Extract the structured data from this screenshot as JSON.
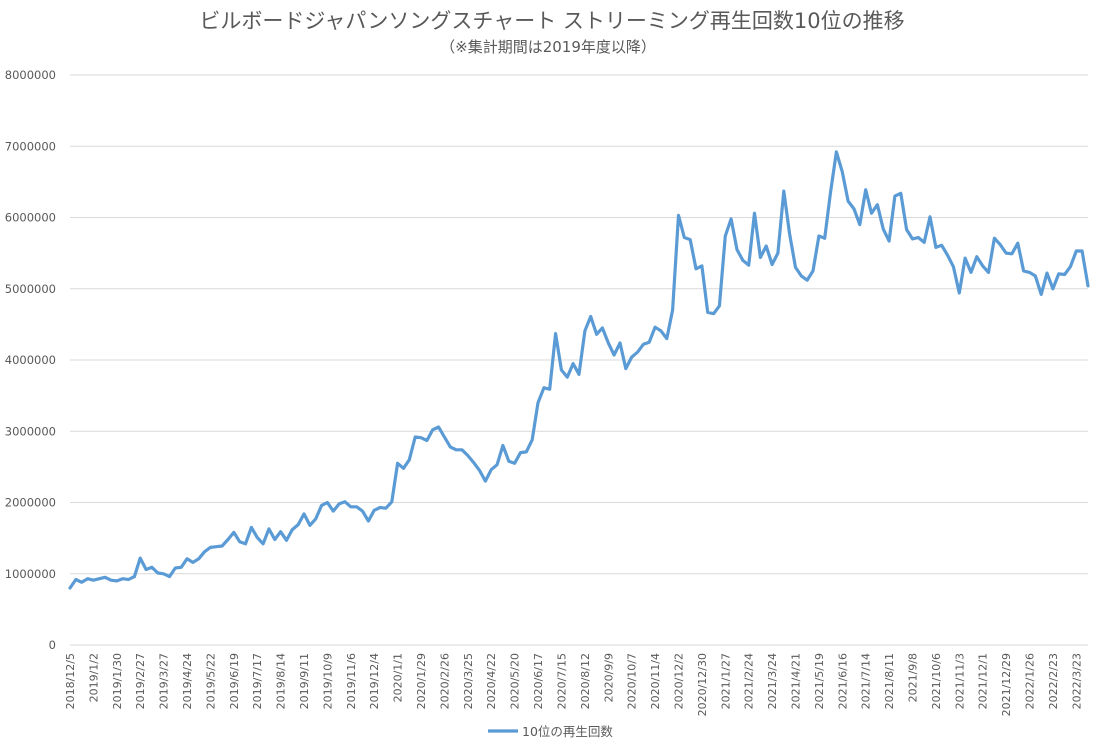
{
  "chart_data": {
    "type": "line",
    "title": "ビルボードジャパンソングスチャート ストリーミング再生回数10位の推移",
    "subtitle": "（※集計期間は2019年度以降）",
    "xlabel": "",
    "ylabel": "",
    "ylim": [
      0,
      8000000
    ],
    "y_ticks": [
      "8000000",
      "7000000",
      "6000000",
      "5000000",
      "4000000",
      "3000000",
      "2000000",
      "1000000",
      "0"
    ],
    "y_tick_values": [
      8000000,
      7000000,
      6000000,
      5000000,
      4000000,
      3000000,
      2000000,
      1000000,
      0
    ],
    "x_tick_labels": [
      "2018/12/5",
      "2019/1/2",
      "2019/1/30",
      "2019/2/27",
      "2019/3/27",
      "2019/4/24",
      "2019/5/22",
      "2019/6/19",
      "2019/7/17",
      "2019/8/14",
      "2019/9/11",
      "2019/10/9",
      "2019/11/6",
      "2019/12/4",
      "2020/1/1",
      "2020/1/29",
      "2020/2/26",
      "2020/3/25",
      "2020/4/22",
      "2020/5/20",
      "2020/6/17",
      "2020/7/15",
      "2020/8/12",
      "2020/9/9",
      "2020/10/7",
      "2020/11/4",
      "2020/12/2",
      "2020/12/30",
      "2021/1/27",
      "2021/2/24",
      "2021/3/24",
      "2021/4/21",
      "2021/5/19",
      "2021/6/16",
      "2021/7/14",
      "2021/8/11",
      "2021/9/8",
      "2021/10/6",
      "2021/11/3",
      "2021/12/1",
      "2021/12/29",
      "2022/1/26",
      "2022/2/23",
      "2022/3/23"
    ],
    "legend": "bottom",
    "grid": true,
    "series": [
      {
        "name": "10位の再生回数",
        "color": "#5b9bd5",
        "values": [
          800000,
          920000,
          880000,
          930000,
          910000,
          930000,
          950000,
          910000,
          900000,
          930000,
          920000,
          960000,
          1220000,
          1060000,
          1090000,
          1010000,
          1000000,
          960000,
          1080000,
          1090000,
          1210000,
          1160000,
          1210000,
          1310000,
          1370000,
          1380000,
          1390000,
          1480000,
          1580000,
          1450000,
          1420000,
          1650000,
          1510000,
          1420000,
          1630000,
          1480000,
          1590000,
          1470000,
          1620000,
          1690000,
          1840000,
          1680000,
          1770000,
          1960000,
          2000000,
          1880000,
          1980000,
          2010000,
          1940000,
          1940000,
          1880000,
          1740000,
          1890000,
          1930000,
          1920000,
          2010000,
          2550000,
          2480000,
          2600000,
          2920000,
          2910000,
          2870000,
          3020000,
          3060000,
          2920000,
          2780000,
          2740000,
          2740000,
          2660000,
          2560000,
          2450000,
          2300000,
          2460000,
          2530000,
          2800000,
          2580000,
          2550000,
          2700000,
          2710000,
          2880000,
          3400000,
          3610000,
          3590000,
          4370000,
          3860000,
          3760000,
          3950000,
          3800000,
          4410000,
          4610000,
          4360000,
          4450000,
          4240000,
          4070000,
          4240000,
          3880000,
          4040000,
          4110000,
          4220000,
          4250000,
          4460000,
          4410000,
          4300000,
          4700000,
          6030000,
          5720000,
          5690000,
          5280000,
          5320000,
          4670000,
          4650000,
          4760000,
          5740000,
          5980000,
          5550000,
          5400000,
          5330000,
          6060000,
          5440000,
          5600000,
          5340000,
          5500000,
          6370000,
          5770000,
          5300000,
          5180000,
          5120000,
          5250000,
          5740000,
          5710000,
          6360000,
          6920000,
          6640000,
          6230000,
          6120000,
          5900000,
          6390000,
          6060000,
          6180000,
          5840000,
          5670000,
          6300000,
          6340000,
          5830000,
          5700000,
          5720000,
          5650000,
          6010000,
          5580000,
          5610000,
          5470000,
          5310000,
          4940000,
          5430000,
          5230000,
          5450000,
          5320000,
          5230000,
          5710000,
          5620000,
          5500000,
          5490000,
          5640000,
          5250000,
          5230000,
          5180000,
          4920000,
          5220000,
          5000000,
          5210000,
          5200000,
          5310000,
          5530000,
          5530000,
          5040000
        ]
      }
    ]
  }
}
